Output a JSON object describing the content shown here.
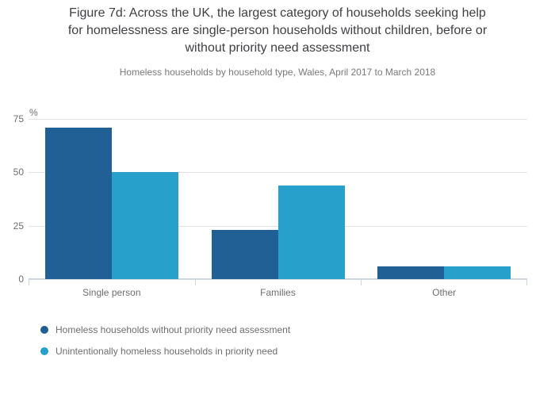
{
  "title": {
    "lines": [
      "Figure 7d: Across the UK, the largest category of households seeking help",
      "for homelessness are single-person households without children, before or",
      "without priority need assessment"
    ],
    "full_text": "Figure 7d: Across the UK, the largest category of households seeking help for homelessness are single-person households without children, before or without priority need assessment"
  },
  "subtitle": "Homeless households by household type, Wales, April 2017 to March 2018",
  "chart_data": {
    "type": "bar",
    "categories": [
      "Single person",
      "Families",
      "Other"
    ],
    "series": [
      {
        "name": "Homeless households without priority need assessment",
        "color": "#206095",
        "values": [
          71,
          23,
          6
        ]
      },
      {
        "name": "Unintentionally homeless households in priority need",
        "color": "#28a0cc",
        "values": [
          50,
          44,
          6
        ]
      }
    ],
    "unit_label": "%",
    "y_ticks": [
      0,
      25,
      50,
      75
    ],
    "ylim": [
      0,
      75
    ],
    "grid": true,
    "legend_position": "bottom-left",
    "colors": {
      "gridline": "#e2e2e2",
      "axis": "#ccd6e2",
      "axis_text": "#6e6e6e",
      "title_text": "#404044",
      "subtitle_text": "#7a7a7a"
    }
  }
}
